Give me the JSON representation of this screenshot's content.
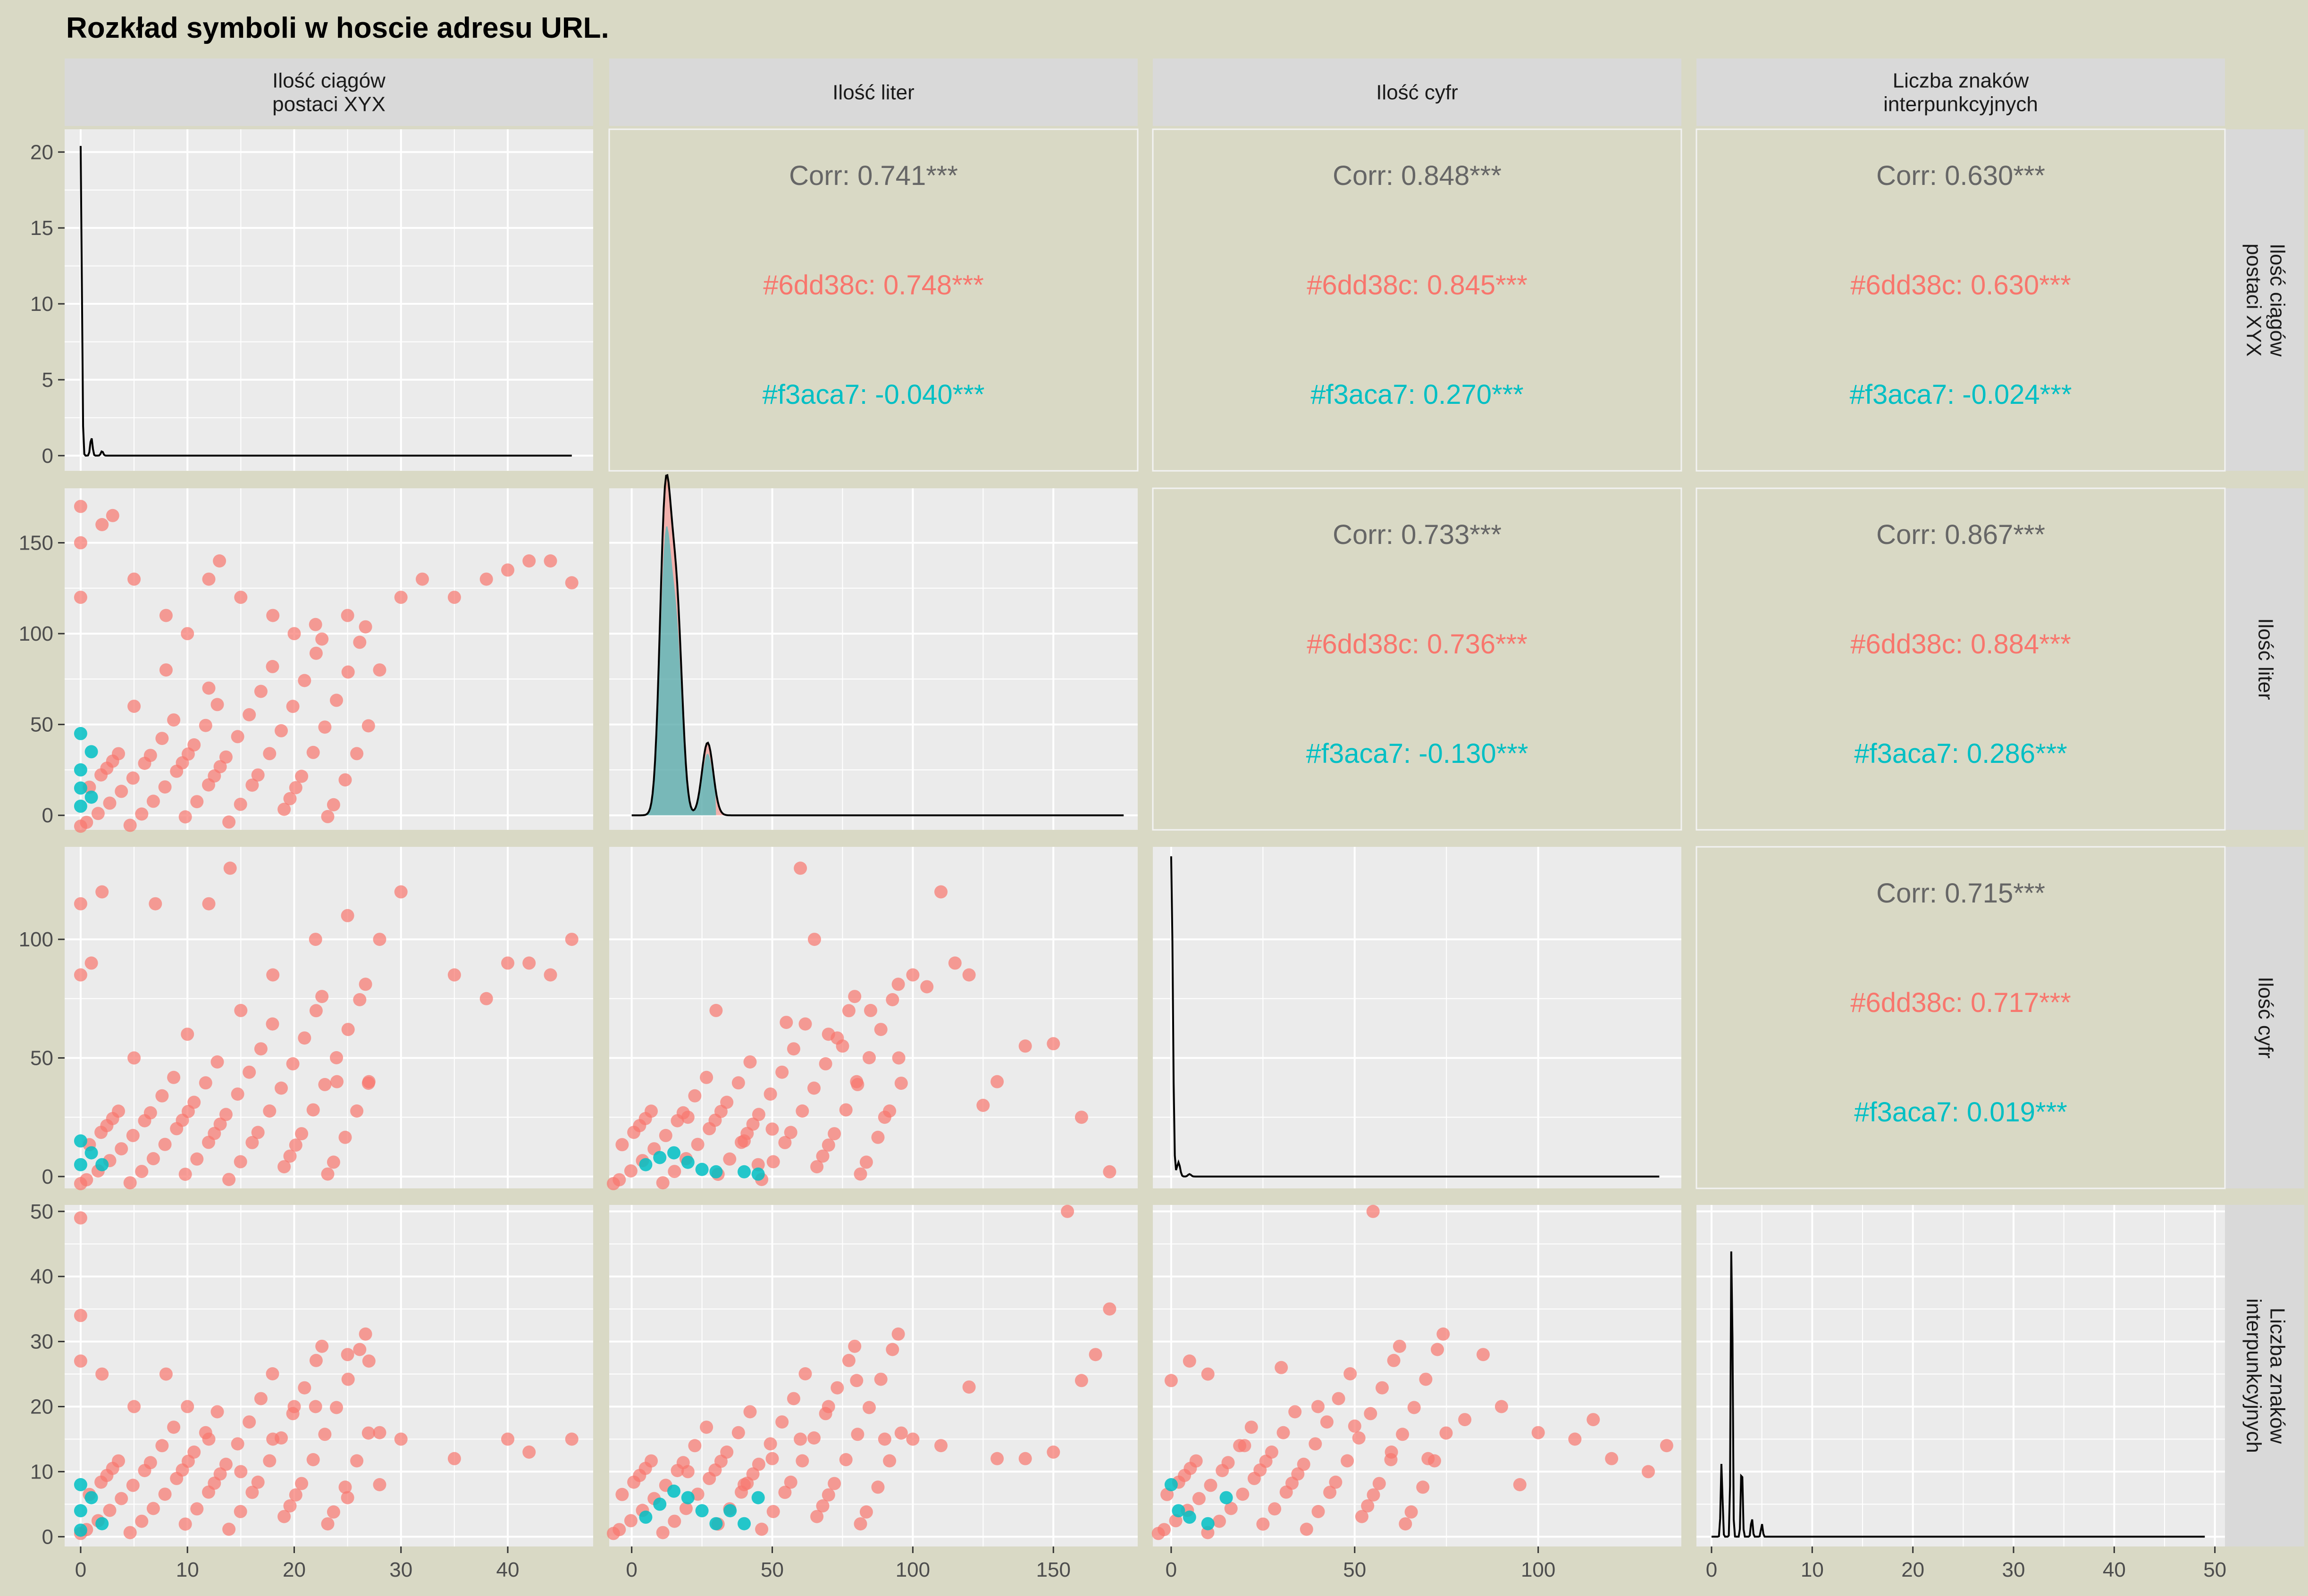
{
  "chart_data": {
    "type": "scatter",
    "title": "Rozkład symboli w hoscie adresu URL.",
    "variables": [
      {
        "key": "xyx",
        "label_lines": [
          "Ilość ciągów",
          "postaci XYX"
        ],
        "range": [
          -1.5,
          48
        ],
        "ticks": [
          0,
          10,
          20,
          30,
          40
        ],
        "y_ticks": [
          0,
          5,
          10,
          15,
          20
        ]
      },
      {
        "key": "letters",
        "label_lines": [
          "Ilość liter"
        ],
        "range": [
          -8,
          180
        ],
        "ticks": [
          0,
          50,
          100,
          150
        ]
      },
      {
        "key": "digits",
        "label_lines": [
          "Ilość cyfr"
        ],
        "range": [
          -5,
          139
        ],
        "ticks": [
          0,
          50,
          100
        ]
      },
      {
        "key": "punct",
        "label_lines": [
          "Liczba znaków",
          "interpunkcyjnych"
        ],
        "range": [
          -1.5,
          51
        ],
        "ticks": [
          0,
          10,
          20,
          30,
          40,
          50
        ]
      }
    ],
    "groups": [
      {
        "name": "#6dd38c",
        "color": "#f8766d"
      },
      {
        "name": "#f3aca7",
        "color": "#00bfc4"
      }
    ],
    "correlations": [
      {
        "row": 0,
        "col": 1,
        "overall": "Corr: 0.741***",
        "g1": "#6dd38c: 0.748***",
        "g2": "#f3aca7: -0.040***"
      },
      {
        "row": 0,
        "col": 2,
        "overall": "Corr: 0.848***",
        "g1": "#6dd38c: 0.845***",
        "g2": "#f3aca7: 0.270***"
      },
      {
        "row": 0,
        "col": 3,
        "overall": "Corr: 0.630***",
        "g1": "#6dd38c: 0.630***",
        "g2": "#f3aca7: -0.024***"
      },
      {
        "row": 1,
        "col": 2,
        "overall": "Corr: 0.733***",
        "g1": "#6dd38c: 0.736***",
        "g2": "#f3aca7: -0.130***"
      },
      {
        "row": 1,
        "col": 3,
        "overall": "Corr: 0.867***",
        "g1": "#6dd38c: 0.884***",
        "g2": "#f3aca7: 0.286***"
      },
      {
        "row": 2,
        "col": 3,
        "overall": "Corr: 0.715***",
        "g1": "#6dd38c: 0.717***",
        "g2": "#f3aca7: 0.019***"
      }
    ],
    "density_peaks": {
      "xyx": [
        [
          0,
          20.4
        ],
        [
          1,
          1.2
        ],
        [
          2,
          0.3
        ]
      ],
      "letters": [
        [
          12,
          170
        ],
        [
          16,
          110
        ],
        [
          27,
          40
        ]
      ],
      "digits": [
        [
          0,
          135
        ],
        [
          2,
          6
        ],
        [
          5,
          1
        ]
      ],
      "punct": [
        [
          1,
          11.5
        ],
        [
          2,
          49
        ],
        [
          3,
          12
        ],
        [
          4,
          3
        ],
        [
          5,
          2
        ]
      ]
    },
    "scatter": {
      "xyx_letters": {
        "g1": [
          [
            0,
            170
          ],
          [
            0,
            150
          ],
          [
            0,
            120
          ],
          [
            2,
            160
          ],
          [
            3,
            165
          ],
          [
            5,
            130
          ],
          [
            8,
            110
          ],
          [
            10,
            100
          ],
          [
            12,
            130
          ],
          [
            13,
            140
          ],
          [
            15,
            120
          ],
          [
            18,
            110
          ],
          [
            20,
            100
          ],
          [
            22,
            105
          ],
          [
            25,
            110
          ],
          [
            28,
            80
          ],
          [
            30,
            120
          ],
          [
            32,
            130
          ],
          [
            35,
            120
          ],
          [
            38,
            130
          ],
          [
            40,
            135
          ],
          [
            42,
            140
          ],
          [
            44,
            140
          ],
          [
            46,
            128
          ],
          [
            5,
            60
          ],
          [
            8,
            80
          ],
          [
            12,
            70
          ]
        ],
        "g2": [
          [
            0,
            45
          ],
          [
            0,
            25
          ],
          [
            0,
            5
          ],
          [
            1,
            35
          ],
          [
            1,
            10
          ],
          [
            0,
            15
          ]
        ]
      },
      "xyx_digits": {
        "g1": [
          [
            0,
            85
          ],
          [
            0,
            115
          ],
          [
            1,
            90
          ],
          [
            2,
            120
          ],
          [
            5,
            50
          ],
          [
            7,
            115
          ],
          [
            10,
            60
          ],
          [
            12,
            115
          ],
          [
            14,
            130
          ],
          [
            15,
            70
          ],
          [
            18,
            85
          ],
          [
            22,
            100
          ],
          [
            25,
            110
          ],
          [
            28,
            100
          ],
          [
            30,
            120
          ],
          [
            35,
            85
          ],
          [
            38,
            75
          ],
          [
            40,
            90
          ],
          [
            42,
            90
          ],
          [
            44,
            85
          ],
          [
            46,
            100
          ],
          [
            24,
            40
          ],
          [
            27,
            40
          ]
        ],
        "g2": [
          [
            0,
            15
          ],
          [
            0,
            5
          ],
          [
            1,
            10
          ],
          [
            2,
            5
          ]
        ]
      },
      "xyx_punct": {
        "g1": [
          [
            0,
            49
          ],
          [
            0,
            34
          ],
          [
            0,
            27
          ],
          [
            2,
            25
          ],
          [
            5,
            20
          ],
          [
            8,
            25
          ],
          [
            10,
            20
          ],
          [
            12,
            15
          ],
          [
            15,
            10
          ],
          [
            18,
            15
          ],
          [
            20,
            20
          ],
          [
            22,
            20
          ],
          [
            25,
            28
          ],
          [
            27,
            27
          ],
          [
            28,
            16
          ],
          [
            28,
            8
          ],
          [
            30,
            15
          ],
          [
            35,
            12
          ],
          [
            40,
            15
          ],
          [
            42,
            13
          ],
          [
            46,
            15
          ],
          [
            25,
            6
          ]
        ],
        "g2": [
          [
            0,
            8
          ],
          [
            0,
            4
          ],
          [
            0,
            1
          ],
          [
            1,
            6
          ],
          [
            2,
            2
          ]
        ]
      },
      "letters_digits": {
        "g1": [
          [
            20,
            25
          ],
          [
            40,
            15
          ],
          [
            50,
            20
          ],
          [
            55,
            65
          ],
          [
            60,
            130
          ],
          [
            65,
            100
          ],
          [
            70,
            60
          ],
          [
            75,
            55
          ],
          [
            80,
            40
          ],
          [
            85,
            70
          ],
          [
            90,
            25
          ],
          [
            95,
            50
          ],
          [
            100,
            85
          ],
          [
            105,
            80
          ],
          [
            110,
            120
          ],
          [
            115,
            90
          ],
          [
            120,
            85
          ],
          [
            125,
            30
          ],
          [
            130,
            40
          ],
          [
            140,
            55
          ],
          [
            150,
            56
          ],
          [
            160,
            25
          ],
          [
            170,
            2
          ],
          [
            30,
            70
          ],
          [
            45,
            5
          ]
        ],
        "g2": [
          [
            5,
            5
          ],
          [
            10,
            8
          ],
          [
            15,
            10
          ],
          [
            20,
            6
          ],
          [
            25,
            3
          ],
          [
            30,
            2
          ],
          [
            40,
            2
          ],
          [
            45,
            1
          ]
        ]
      },
      "letters_punct": {
        "g1": [
          [
            20,
            10
          ],
          [
            40,
            8
          ],
          [
            50,
            12
          ],
          [
            60,
            15
          ],
          [
            70,
            20
          ],
          [
            80,
            24
          ],
          [
            90,
            15
          ],
          [
            100,
            15
          ],
          [
            110,
            14
          ],
          [
            120,
            23
          ],
          [
            130,
            12
          ],
          [
            140,
            12
          ],
          [
            150,
            13
          ],
          [
            155,
            50
          ],
          [
            160,
            24
          ],
          [
            165,
            28
          ],
          [
            170,
            35
          ]
        ],
        "g2": [
          [
            5,
            3
          ],
          [
            10,
            5
          ],
          [
            15,
            7
          ],
          [
            20,
            6
          ],
          [
            25,
            4
          ],
          [
            30,
            2
          ],
          [
            35,
            4
          ],
          [
            40,
            2
          ],
          [
            45,
            6
          ]
        ]
      },
      "digits_punct": {
        "g1": [
          [
            0,
            24
          ],
          [
            5,
            27
          ],
          [
            10,
            25
          ],
          [
            20,
            14
          ],
          [
            30,
            26
          ],
          [
            40,
            20
          ],
          [
            50,
            17
          ],
          [
            55,
            50
          ],
          [
            60,
            13
          ],
          [
            70,
            12
          ],
          [
            80,
            18
          ],
          [
            85,
            28
          ],
          [
            90,
            20
          ],
          [
            95,
            8
          ],
          [
            100,
            16
          ],
          [
            110,
            15
          ],
          [
            115,
            18
          ],
          [
            120,
            12
          ],
          [
            130,
            10
          ],
          [
            135,
            14
          ]
        ],
        "g2": [
          [
            0,
            8
          ],
          [
            2,
            4
          ],
          [
            5,
            3
          ],
          [
            10,
            2
          ],
          [
            15,
            6
          ]
        ]
      }
    }
  }
}
